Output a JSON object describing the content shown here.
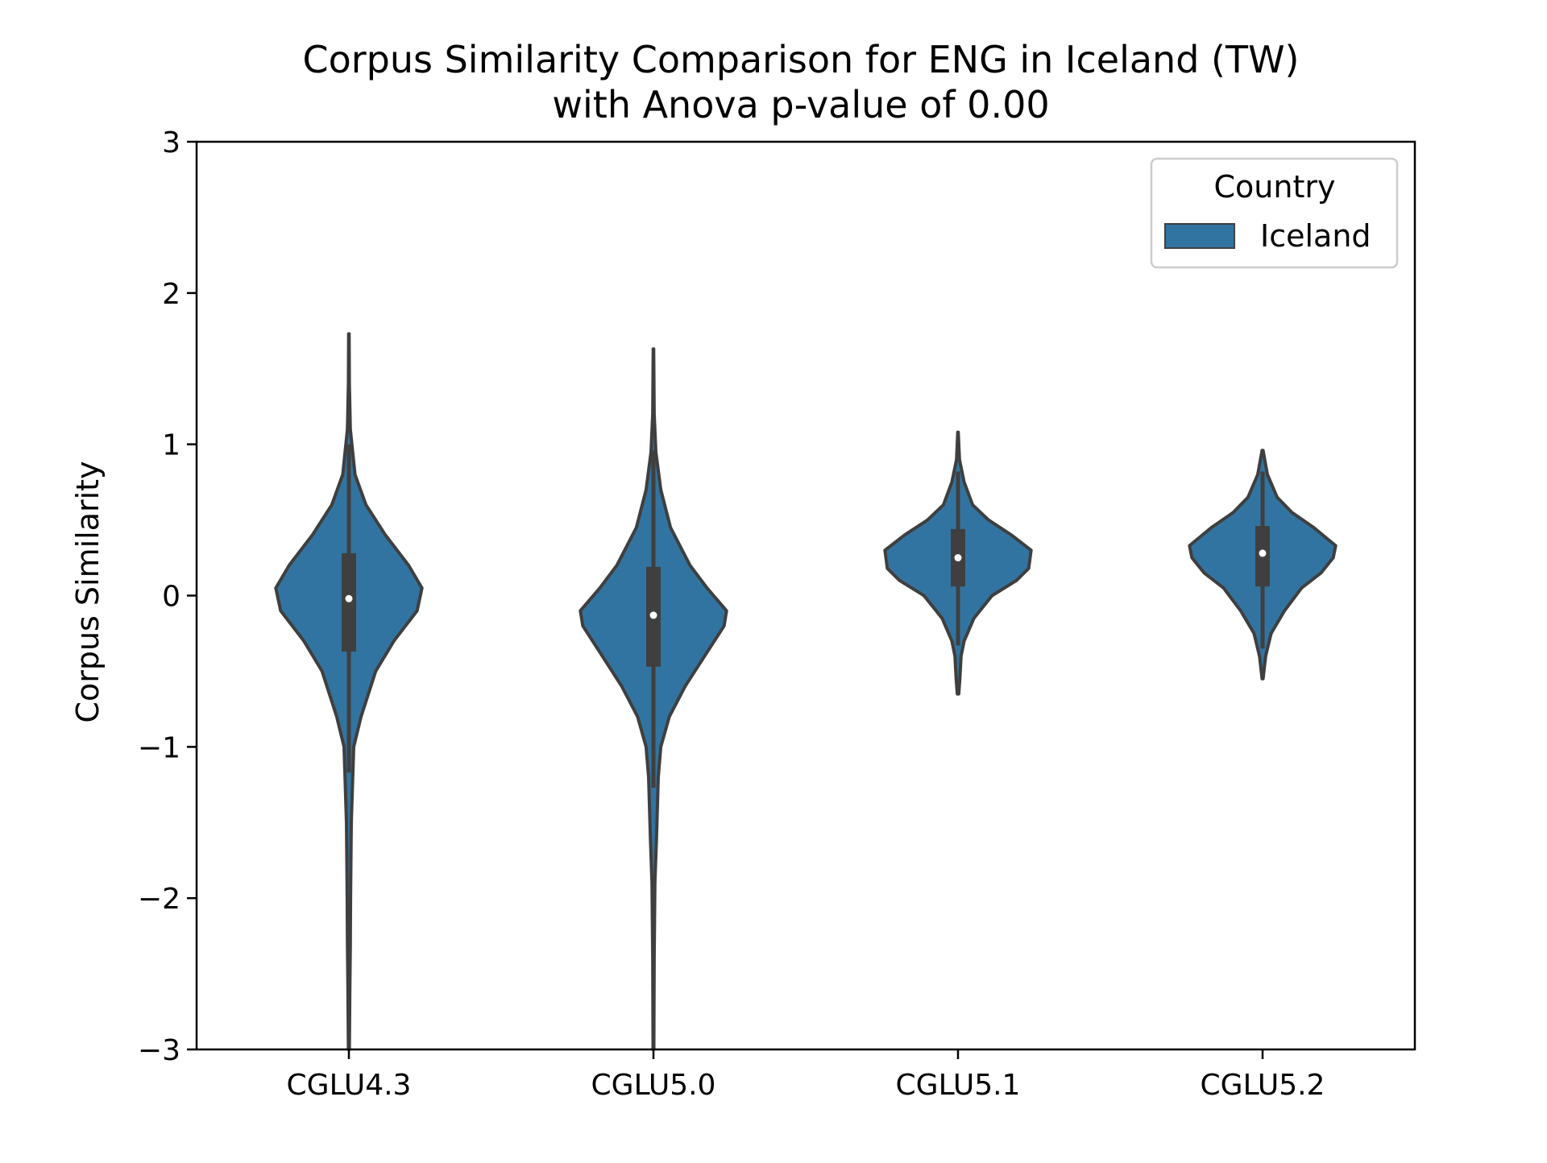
{
  "chart_data": {
    "type": "violin",
    "title_line1": "Corpus Similarity Comparison for ENG in Iceland (TW)",
    "title_line2": "with Anova p-value of 0.00",
    "xlabel": "",
    "ylabel": "Corpus Similarity",
    "ylim": [
      -3,
      3
    ],
    "yticks": [
      -3,
      -2,
      -1,
      0,
      1,
      2,
      3
    ],
    "ytick_labels": [
      "−3",
      "−2",
      "−1",
      "0",
      "1",
      "2",
      "3"
    ],
    "categories": [
      "CGLU4.3",
      "CGLU5.0",
      "CGLU5.1",
      "CGLU5.2"
    ],
    "legend": {
      "title": "Country",
      "entries": [
        "Iceland"
      ],
      "placement": "top-right"
    },
    "colors": {
      "fill": "#3274a1",
      "edge": "#3f3f3f",
      "box": "#3f3f3f",
      "median": "#ffffff"
    },
    "series": [
      {
        "name": "Iceland",
        "violins": [
          {
            "category": "CGLU4.3",
            "median": -0.02,
            "q1": -0.37,
            "q3": 0.28,
            "whisker_low": -1.17,
            "whisker_high": 1.0,
            "profile": [
              [
                -3.0,
                0.004
              ],
              [
                -2.6,
                0.008
              ],
              [
                -2.3,
                0.012
              ],
              [
                -2.0,
                0.014
              ],
              [
                -1.5,
                0.02
              ],
              [
                -1.0,
                0.04
              ],
              [
                -0.8,
                0.1
              ],
              [
                -0.5,
                0.22
              ],
              [
                -0.3,
                0.37
              ],
              [
                -0.1,
                0.56
              ],
              [
                0.05,
                0.6
              ],
              [
                0.2,
                0.49
              ],
              [
                0.4,
                0.3
              ],
              [
                0.6,
                0.14
              ],
              [
                0.8,
                0.05
              ],
              [
                1.1,
                0.012
              ],
              [
                1.4,
                0.004
              ],
              [
                1.73,
                0.002
              ]
            ]
          },
          {
            "category": "CGLU5.0",
            "median": -0.13,
            "q1": -0.47,
            "q3": 0.19,
            "whisker_low": -1.27,
            "whisker_high": 0.96,
            "profile": [
              [
                -3.0,
                0.003
              ],
              [
                -2.4,
                0.006
              ],
              [
                -1.9,
                0.012
              ],
              [
                -1.6,
                0.025
              ],
              [
                -1.2,
                0.04
              ],
              [
                -1.0,
                0.06
              ],
              [
                -0.8,
                0.13
              ],
              [
                -0.6,
                0.26
              ],
              [
                -0.4,
                0.42
              ],
              [
                -0.2,
                0.58
              ],
              [
                -0.1,
                0.6
              ],
              [
                0.05,
                0.44
              ],
              [
                0.2,
                0.3
              ],
              [
                0.45,
                0.14
              ],
              [
                0.7,
                0.06
              ],
              [
                0.95,
                0.02
              ],
              [
                1.2,
                0.006
              ],
              [
                1.63,
                0.002
              ]
            ]
          },
          {
            "category": "CGLU5.1",
            "median": 0.25,
            "q1": 0.06,
            "q3": 0.44,
            "whisker_low": -0.33,
            "whisker_high": 0.82,
            "profile": [
              [
                -0.65,
                0.006
              ],
              [
                -0.55,
                0.015
              ],
              [
                -0.4,
                0.025
              ],
              [
                -0.3,
                0.05
              ],
              [
                -0.15,
                0.13
              ],
              [
                0.0,
                0.28
              ],
              [
                0.1,
                0.48
              ],
              [
                0.18,
                0.58
              ],
              [
                0.3,
                0.6
              ],
              [
                0.4,
                0.44
              ],
              [
                0.5,
                0.25
              ],
              [
                0.6,
                0.12
              ],
              [
                0.75,
                0.05
              ],
              [
                0.9,
                0.012
              ],
              [
                1.08,
                0.002
              ]
            ]
          },
          {
            "category": "CGLU5.2",
            "median": 0.28,
            "q1": 0.06,
            "q3": 0.46,
            "whisker_low": -0.35,
            "whisker_high": 0.82,
            "profile": [
              [
                -0.55,
                0.004
              ],
              [
                -0.4,
                0.025
              ],
              [
                -0.25,
                0.07
              ],
              [
                -0.1,
                0.18
              ],
              [
                0.05,
                0.32
              ],
              [
                0.15,
                0.48
              ],
              [
                0.25,
                0.58
              ],
              [
                0.33,
                0.6
              ],
              [
                0.45,
                0.42
              ],
              [
                0.55,
                0.24
              ],
              [
                0.65,
                0.12
              ],
              [
                0.8,
                0.04
              ],
              [
                0.96,
                0.004
              ]
            ]
          }
        ]
      }
    ]
  }
}
